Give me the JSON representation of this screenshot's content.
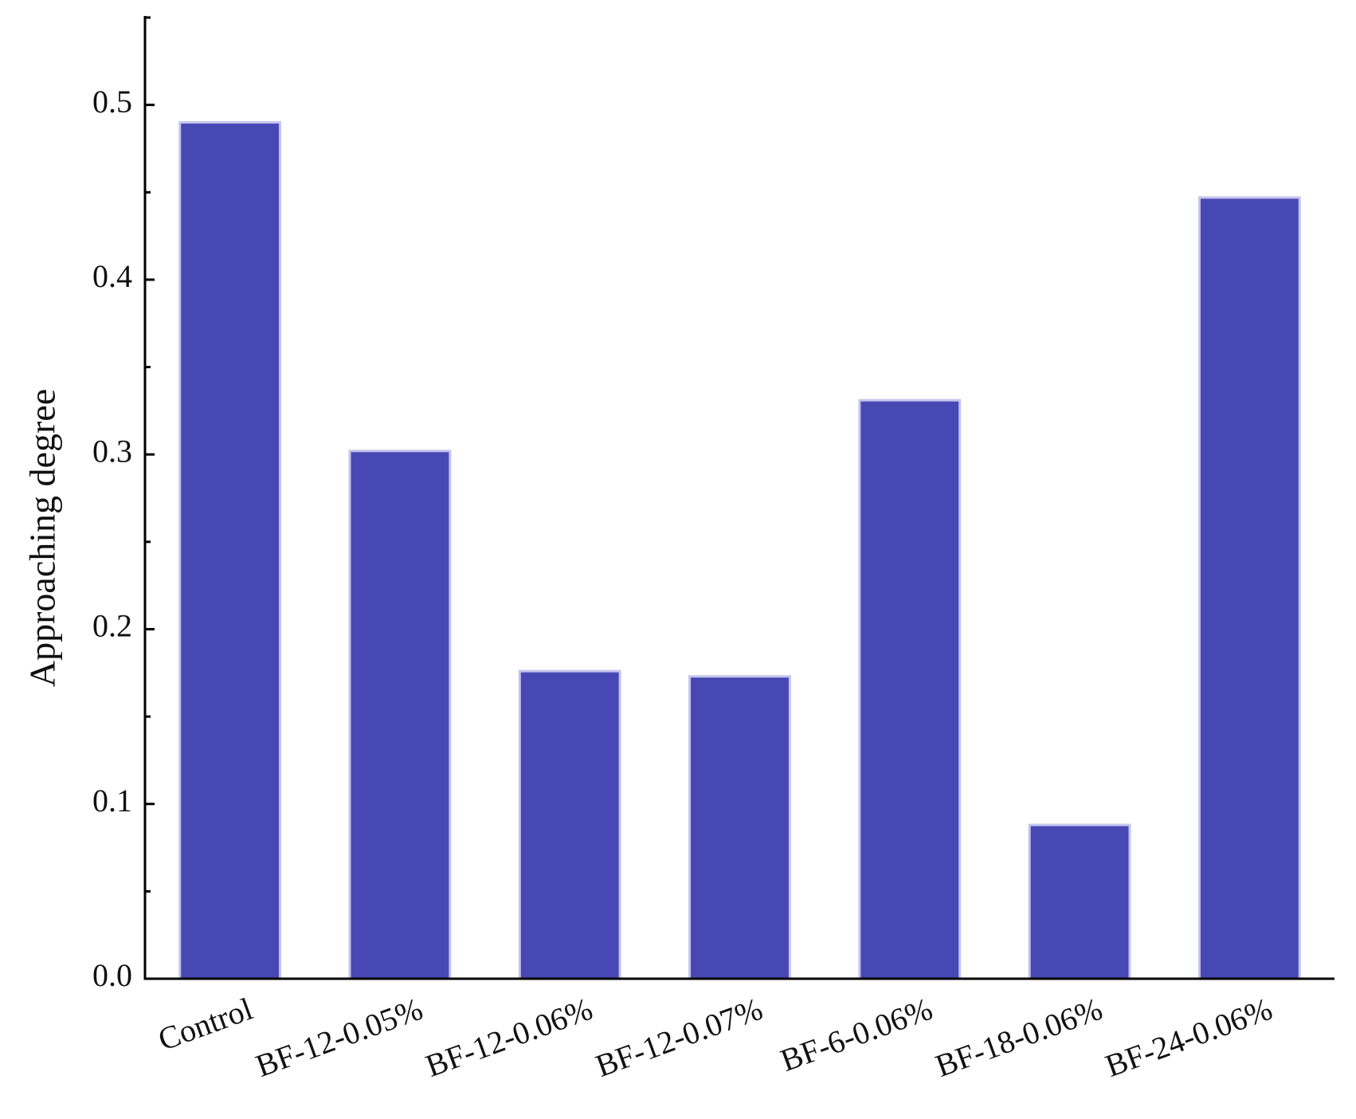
{
  "chart_data": {
    "type": "bar",
    "y_label": "Approaching degree",
    "categories": [
      "Control",
      "BF-12-0.05%",
      "BF-12-0.06%",
      "BF-12-0.07%",
      "BF-6-0.06%",
      "BF-18-0.06%",
      "BF-24-0.06%"
    ],
    "values": [
      0.49,
      0.302,
      0.176,
      0.173,
      0.331,
      0.088,
      0.447
    ],
    "color": "#4848b4",
    "edge_color": "#c4c4ee",
    "ylim": [
      0,
      0.55
    ],
    "yticks": [
      {
        "value": 0,
        "label": "0.0"
      },
      0.1,
      0.2,
      0.3,
      0.4,
      0.5
    ],
    "yminorticks": [
      0.05,
      0.15,
      0.25,
      0.35,
      0.45,
      0.55
    ],
    "grid": false
  }
}
